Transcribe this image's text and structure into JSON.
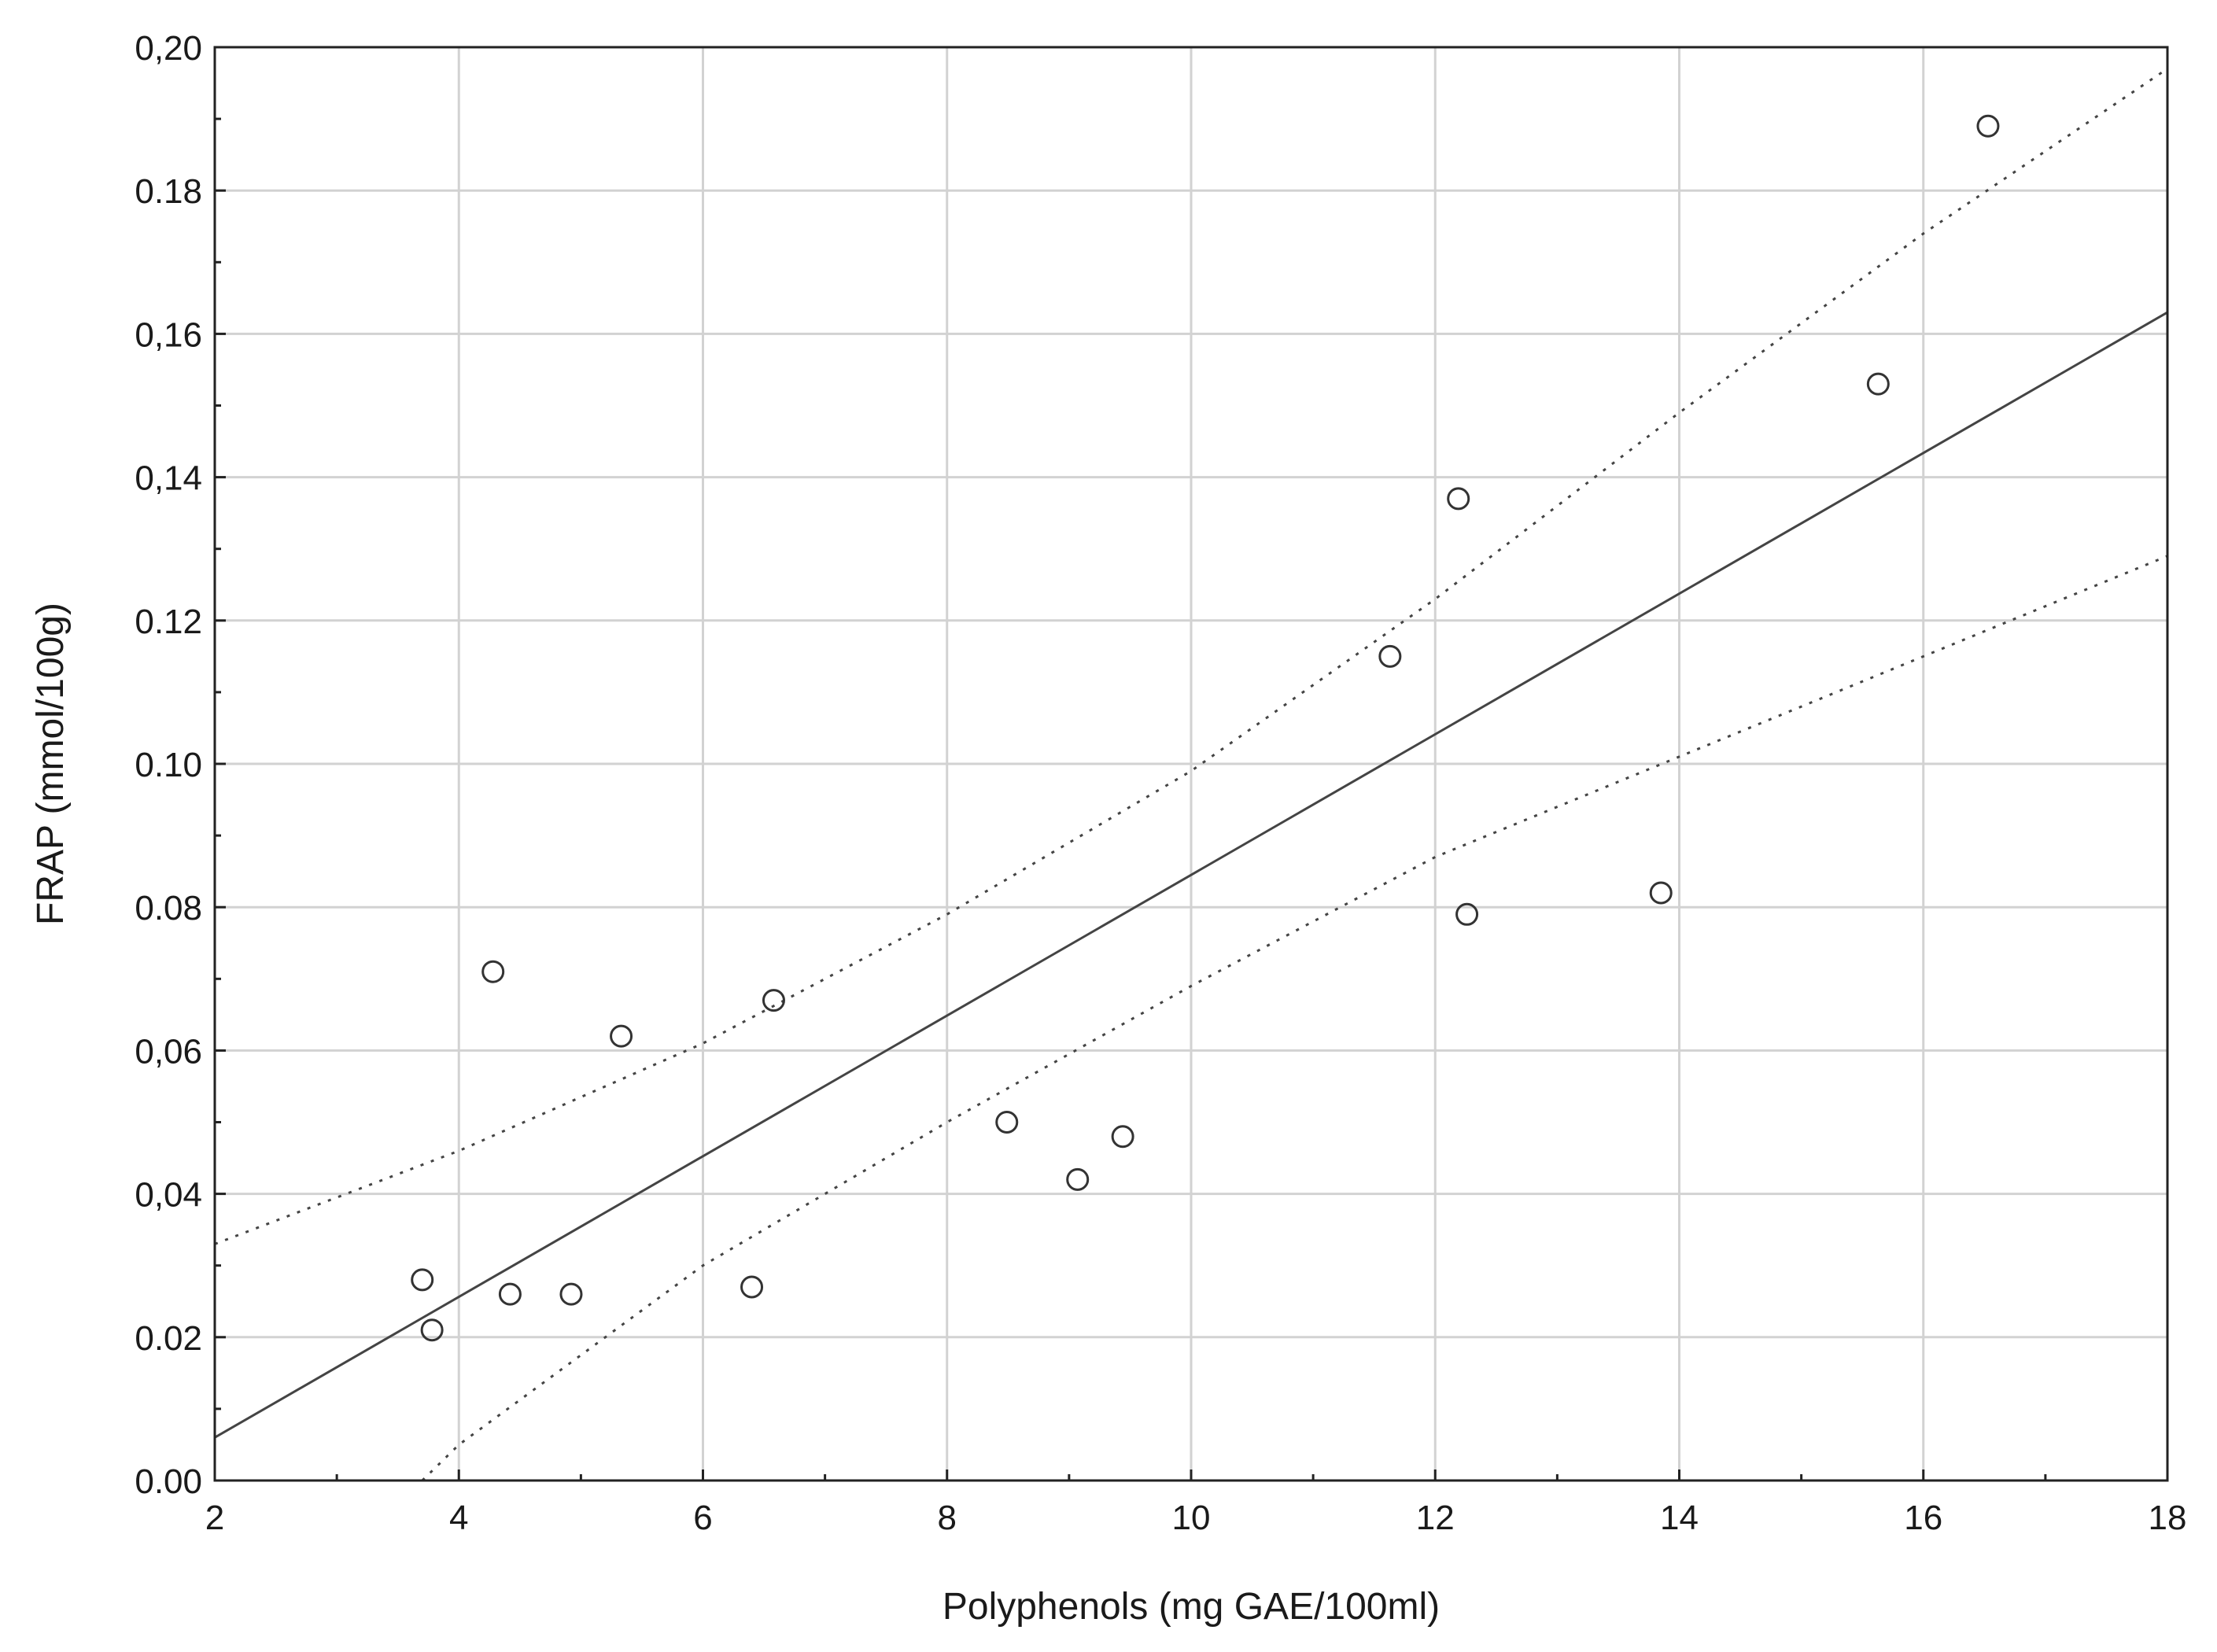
{
  "chart_data": {
    "type": "scatter",
    "title": "",
    "xlabel": "Polyphenols (mg GAE/100ml)",
    "ylabel": "FRAP (mmol/100g)",
    "xlim": [
      2,
      18
    ],
    "ylim": [
      0,
      0.2
    ],
    "grid": true,
    "x_ticks": [
      {
        "value": 2,
        "label": "2"
      },
      {
        "value": 4,
        "label": "4"
      },
      {
        "value": 6,
        "label": "6"
      },
      {
        "value": 8,
        "label": "8"
      },
      {
        "value": 10,
        "label": "10"
      },
      {
        "value": 12,
        "label": "12"
      },
      {
        "value": 14,
        "label": "14"
      },
      {
        "value": 16,
        "label": "16"
      },
      {
        "value": 18,
        "label": "18"
      }
    ],
    "y_ticks": [
      {
        "value": 0.0,
        "label": "0.00"
      },
      {
        "value": 0.02,
        "label": "0.02"
      },
      {
        "value": 0.04,
        "label": "0,04"
      },
      {
        "value": 0.06,
        "label": "0,06"
      },
      {
        "value": 0.08,
        "label": "0.08"
      },
      {
        "value": 0.1,
        "label": "0.10"
      },
      {
        "value": 0.12,
        "label": "0.12"
      },
      {
        "value": 0.14,
        "label": "0,14"
      },
      {
        "value": 0.16,
        "label": "0,16"
      },
      {
        "value": 0.18,
        "label": "0.18"
      },
      {
        "value": 0.2,
        "label": "0,20"
      }
    ],
    "points": [
      {
        "x": 3.7,
        "y": 0.028
      },
      {
        "x": 3.78,
        "y": 0.021
      },
      {
        "x": 4.28,
        "y": 0.071
      },
      {
        "x": 4.42,
        "y": 0.026
      },
      {
        "x": 4.92,
        "y": 0.026
      },
      {
        "x": 5.33,
        "y": 0.062
      },
      {
        "x": 6.4,
        "y": 0.027
      },
      {
        "x": 6.58,
        "y": 0.067
      },
      {
        "x": 8.49,
        "y": 0.05
      },
      {
        "x": 9.07,
        "y": 0.042
      },
      {
        "x": 9.44,
        "y": 0.048
      },
      {
        "x": 11.63,
        "y": 0.115
      },
      {
        "x": 12.19,
        "y": 0.137
      },
      {
        "x": 12.26,
        "y": 0.079
      },
      {
        "x": 13.85,
        "y": 0.082
      },
      {
        "x": 15.63,
        "y": 0.153
      },
      {
        "x": 16.53,
        "y": 0.189
      }
    ],
    "fit_line": [
      {
        "x": 2,
        "y": 0.006
      },
      {
        "x": 18,
        "y": 0.163
      }
    ],
    "confidence_upper": [
      {
        "x": 2,
        "y": 0.033
      },
      {
        "x": 4,
        "y": 0.046
      },
      {
        "x": 6,
        "y": 0.061
      },
      {
        "x": 8,
        "y": 0.079
      },
      {
        "x": 10,
        "y": 0.099
      },
      {
        "x": 12,
        "y": 0.123
      },
      {
        "x": 14,
        "y": 0.149
      },
      {
        "x": 16,
        "y": 0.174
      },
      {
        "x": 18,
        "y": 0.197
      }
    ],
    "confidence_lower": [
      {
        "x": 3.7,
        "y": 0.0
      },
      {
        "x": 4,
        "y": 0.005
      },
      {
        "x": 6,
        "y": 0.03
      },
      {
        "x": 8,
        "y": 0.05
      },
      {
        "x": 10,
        "y": 0.069
      },
      {
        "x": 12,
        "y": 0.087
      },
      {
        "x": 14,
        "y": 0.101
      },
      {
        "x": 16,
        "y": 0.115
      },
      {
        "x": 18,
        "y": 0.129
      }
    ]
  }
}
